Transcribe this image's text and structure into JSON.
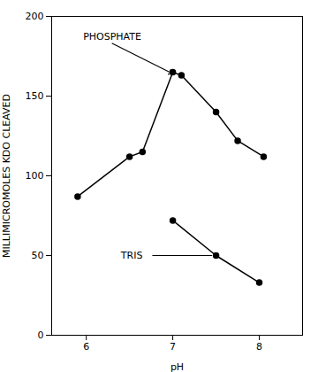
{
  "chart_data": {
    "type": "line",
    "xlabel": "pH",
    "ylabel": "MILLIMICROMOLES KDO CLEAVED",
    "series": [
      {
        "name": "PHOSPHATE",
        "color": "#000000",
        "marker": "circle",
        "x": [
          5.9,
          6.5,
          6.65,
          7.0,
          7.1,
          7.5,
          7.75,
          8.05
        ],
        "values": [
          87,
          112,
          115,
          165,
          163,
          140,
          122,
          112
        ]
      },
      {
        "name": "TRIS",
        "color": "#000000",
        "marker": "circle",
        "x": [
          7.0,
          7.5,
          8.0
        ],
        "values": [
          72,
          50,
          33
        ]
      }
    ],
    "xlim": [
      5.6,
      8.5
    ],
    "xticks": [
      6,
      7,
      8
    ],
    "ylim": [
      0,
      200
    ],
    "yticks": [
      0,
      50,
      100,
      150,
      200
    ],
    "grid": false,
    "annotations": [
      {
        "text": "PHOSPHATE",
        "x": 6.3,
        "y": 183,
        "arrow_x": 7.0,
        "arrow_y": 164,
        "arrow": "arrow"
      },
      {
        "text": "TRIS",
        "x": 6.4,
        "y": 50,
        "arrow_x": 7.45,
        "arrow_y": 50,
        "arrow": "line"
      }
    ]
  }
}
